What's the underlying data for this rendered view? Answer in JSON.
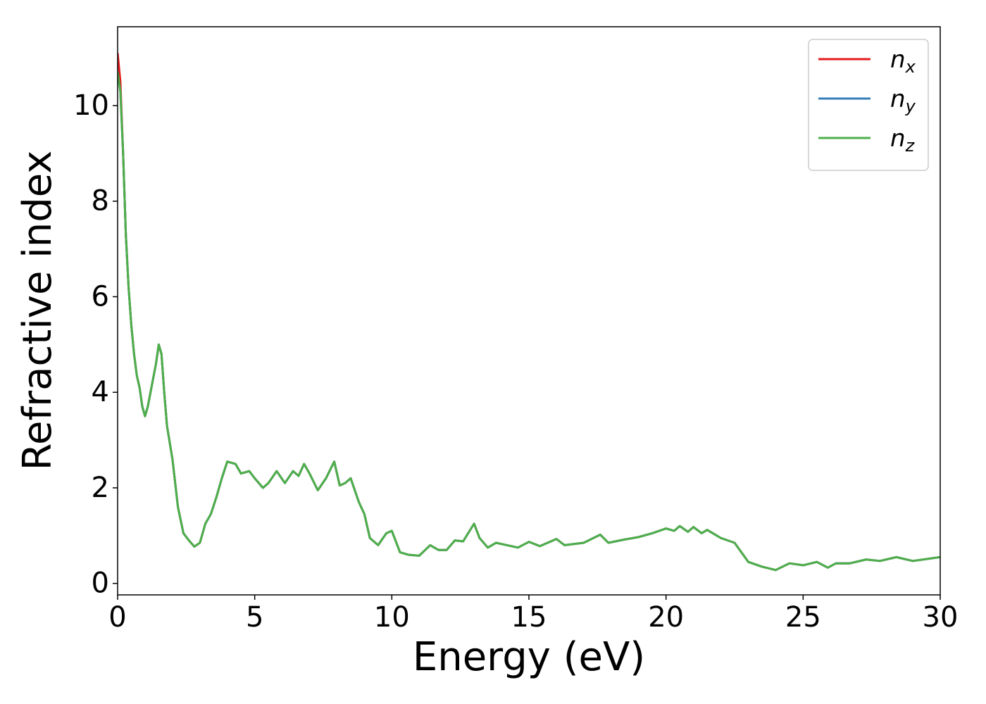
{
  "chart_data": {
    "type": "line",
    "xlabel": "Energy (eV)",
    "ylabel": "Refractive index",
    "x": [
      0,
      0.1,
      0.2,
      0.3,
      0.4,
      0.5,
      0.6,
      0.7,
      0.8,
      0.9,
      1.0,
      1.1,
      1.2,
      1.3,
      1.4,
      1.5,
      1.6,
      1.7,
      1.8,
      2.0,
      2.2,
      2.4,
      2.6,
      2.8,
      3.0,
      3.2,
      3.4,
      3.6,
      3.8,
      4.0,
      4.3,
      4.5,
      4.8,
      5.0,
      5.3,
      5.5,
      5.8,
      6.1,
      6.4,
      6.6,
      6.8,
      7.0,
      7.3,
      7.6,
      7.9,
      8.1,
      8.3,
      8.5,
      8.8,
      9.0,
      9.2,
      9.5,
      9.8,
      10.0,
      10.3,
      10.6,
      11.0,
      11.4,
      11.7,
      12.0,
      12.3,
      12.6,
      13.0,
      13.2,
      13.5,
      13.8,
      14.2,
      14.6,
      15.0,
      15.4,
      16.0,
      16.3,
      17.0,
      17.6,
      17.9,
      18.5,
      19.0,
      19.5,
      20.0,
      20.3,
      20.5,
      20.8,
      21.0,
      21.3,
      21.5,
      22.0,
      22.5,
      23.0,
      23.5,
      24.0,
      24.5,
      25.0,
      25.5,
      25.9,
      26.2,
      26.7,
      27.3,
      27.8,
      28.4,
      29.0,
      30.0
    ],
    "series": [
      {
        "name": "nx",
        "color": "#e41a1c",
        "values": [
          11.1,
          10.5,
          9.0,
          7.3,
          6.2,
          5.4,
          4.8,
          4.35,
          4.1,
          3.7,
          3.5,
          3.7,
          4.0,
          4.3,
          4.6,
          5.0,
          4.8,
          4.0,
          3.3,
          2.6,
          1.6,
          1.05,
          0.9,
          0.77,
          0.85,
          1.25,
          1.45,
          1.8,
          2.2,
          2.55,
          2.5,
          2.3,
          2.35,
          2.2,
          2.0,
          2.1,
          2.35,
          2.1,
          2.35,
          2.25,
          2.5,
          2.3,
          1.95,
          2.2,
          2.55,
          2.05,
          2.1,
          2.2,
          1.7,
          1.45,
          0.95,
          0.8,
          1.05,
          1.1,
          0.65,
          0.6,
          0.58,
          0.8,
          0.7,
          0.7,
          0.9,
          0.88,
          1.25,
          0.95,
          0.75,
          0.85,
          0.8,
          0.75,
          0.87,
          0.78,
          0.93,
          0.8,
          0.85,
          1.02,
          0.85,
          0.92,
          0.97,
          1.05,
          1.15,
          1.1,
          1.2,
          1.08,
          1.18,
          1.05,
          1.12,
          0.95,
          0.85,
          0.45,
          0.35,
          0.28,
          0.42,
          0.38,
          0.45,
          0.33,
          0.42,
          0.42,
          0.5,
          0.47,
          0.55,
          0.47,
          0.55
        ]
      },
      {
        "name": "ny",
        "color": "#377eb8",
        "values": [
          10.7,
          10.3,
          9.0,
          7.3,
          6.2,
          5.4,
          4.8,
          4.35,
          4.1,
          3.7,
          3.5,
          3.7,
          4.0,
          4.3,
          4.6,
          5.0,
          4.8,
          4.0,
          3.3,
          2.6,
          1.6,
          1.05,
          0.9,
          0.77,
          0.85,
          1.25,
          1.45,
          1.8,
          2.2,
          2.55,
          2.5,
          2.3,
          2.35,
          2.2,
          2.0,
          2.1,
          2.35,
          2.1,
          2.35,
          2.25,
          2.5,
          2.3,
          1.95,
          2.2,
          2.55,
          2.05,
          2.1,
          2.2,
          1.7,
          1.45,
          0.95,
          0.8,
          1.05,
          1.1,
          0.65,
          0.6,
          0.58,
          0.8,
          0.7,
          0.7,
          0.9,
          0.88,
          1.25,
          0.95,
          0.75,
          0.85,
          0.8,
          0.75,
          0.87,
          0.78,
          0.93,
          0.8,
          0.85,
          1.02,
          0.85,
          0.92,
          0.97,
          1.05,
          1.15,
          1.1,
          1.2,
          1.08,
          1.18,
          1.05,
          1.12,
          0.95,
          0.85,
          0.45,
          0.35,
          0.28,
          0.42,
          0.38,
          0.45,
          0.33,
          0.42,
          0.42,
          0.5,
          0.47,
          0.55,
          0.47,
          0.55
        ]
      },
      {
        "name": "nz",
        "color": "#4daf4a",
        "values": [
          10.7,
          10.3,
          9.0,
          7.3,
          6.2,
          5.4,
          4.8,
          4.35,
          4.1,
          3.7,
          3.5,
          3.7,
          4.0,
          4.3,
          4.6,
          5.0,
          4.8,
          4.0,
          3.3,
          2.6,
          1.6,
          1.05,
          0.9,
          0.77,
          0.85,
          1.25,
          1.45,
          1.8,
          2.2,
          2.55,
          2.5,
          2.3,
          2.35,
          2.2,
          2.0,
          2.1,
          2.35,
          2.1,
          2.35,
          2.25,
          2.5,
          2.3,
          1.95,
          2.2,
          2.55,
          2.05,
          2.1,
          2.2,
          1.7,
          1.45,
          0.95,
          0.8,
          1.05,
          1.1,
          0.65,
          0.6,
          0.58,
          0.8,
          0.7,
          0.7,
          0.9,
          0.88,
          1.25,
          0.95,
          0.75,
          0.85,
          0.8,
          0.75,
          0.87,
          0.78,
          0.93,
          0.8,
          0.85,
          1.02,
          0.85,
          0.92,
          0.97,
          1.05,
          1.15,
          1.1,
          1.2,
          1.08,
          1.18,
          1.05,
          1.12,
          0.95,
          0.85,
          0.45,
          0.35,
          0.28,
          0.42,
          0.38,
          0.45,
          0.33,
          0.42,
          0.42,
          0.5,
          0.47,
          0.55,
          0.47,
          0.55
        ]
      }
    ],
    "xlim": [
      0,
      30
    ],
    "xticks": [
      0,
      5,
      10,
      15,
      20,
      25,
      30
    ],
    "ylim": [
      -0.24,
      11.65
    ],
    "yticks": [
      0,
      2,
      4,
      6,
      8,
      10
    ],
    "legend": "upper right",
    "grid": false
  }
}
